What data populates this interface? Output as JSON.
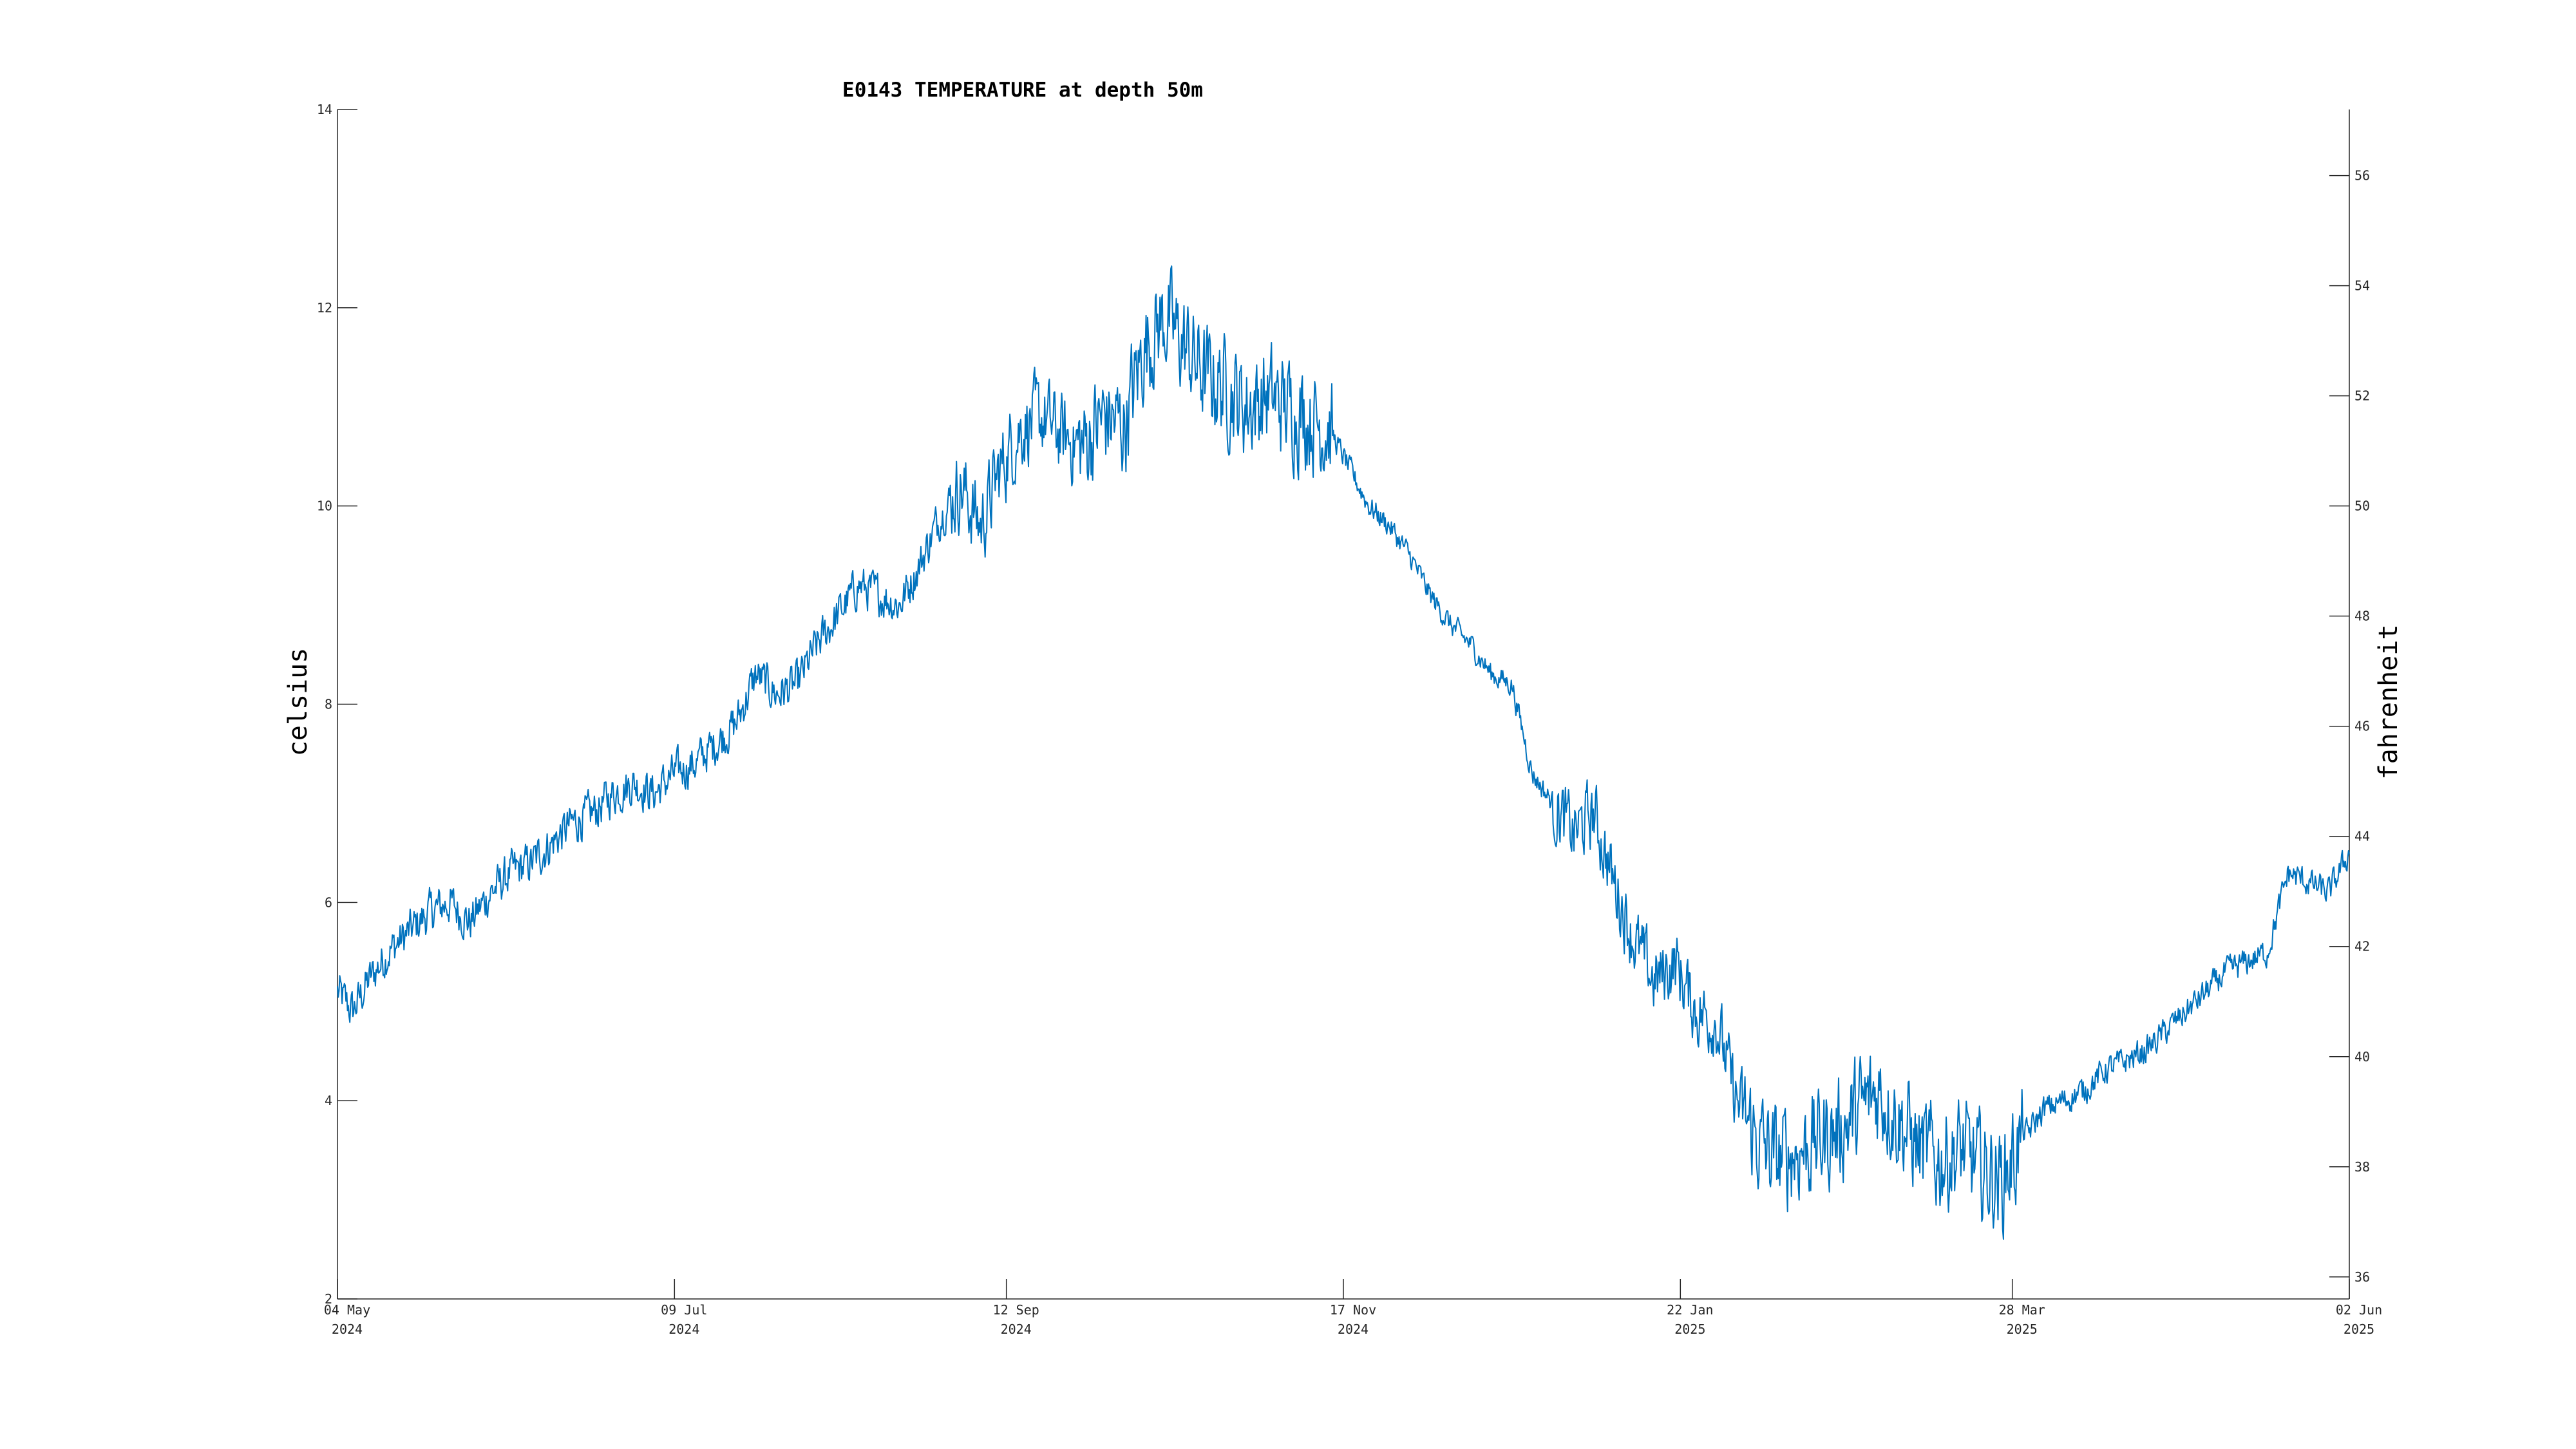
{
  "chart_data": {
    "type": "line",
    "title": "E0143 TEMPERATURE at depth 50m",
    "ylabel": "celsius",
    "ylabel_right": "fahrenheit",
    "xlabel": "",
    "xlim": [
      "2024-05-04",
      "2025-06-02"
    ],
    "ylim": [
      2,
      14
    ],
    "ylim_right": [
      35.6,
      57.2
    ],
    "grid": false,
    "legend": "none",
    "x_ticks": [
      {
        "date": "2024-05-04",
        "line1": "04 May",
        "line2": "2024"
      },
      {
        "date": "2024-07-09",
        "line1": "09 Jul",
        "line2": "2024"
      },
      {
        "date": "2024-09-12",
        "line1": "12 Sep",
        "line2": "2024"
      },
      {
        "date": "2024-11-17",
        "line1": "17 Nov",
        "line2": "2024"
      },
      {
        "date": "2025-01-22",
        "line1": "22 Jan",
        "line2": "2025"
      },
      {
        "date": "2025-03-28",
        "line1": "28 Mar",
        "line2": "2025"
      },
      {
        "date": "2025-06-02",
        "line1": "02 Jun",
        "line2": "2025"
      }
    ],
    "y_ticks": [
      2,
      4,
      6,
      8,
      10,
      12,
      14
    ],
    "y_ticks_right": [
      36,
      38,
      40,
      42,
      44,
      46,
      48,
      50,
      52,
      54,
      56
    ],
    "series": [
      {
        "color": "#0072bd",
        "x": [
          "2024-05-04",
          "2024-05-07",
          "2024-05-10",
          "2024-05-14",
          "2024-05-18",
          "2024-05-22",
          "2024-05-26",
          "2024-05-30",
          "2024-06-03",
          "2024-06-07",
          "2024-06-11",
          "2024-06-15",
          "2024-06-19",
          "2024-06-23",
          "2024-06-27",
          "2024-07-01",
          "2024-07-05",
          "2024-07-09",
          "2024-07-13",
          "2024-07-17",
          "2024-07-21",
          "2024-07-25",
          "2024-07-29",
          "2024-08-02",
          "2024-08-06",
          "2024-08-10",
          "2024-08-14",
          "2024-08-18",
          "2024-08-22",
          "2024-08-26",
          "2024-08-30",
          "2024-09-03",
          "2024-09-07",
          "2024-09-11",
          "2024-09-15",
          "2024-09-19",
          "2024-09-23",
          "2024-09-27",
          "2024-10-01",
          "2024-10-05",
          "2024-10-09",
          "2024-10-13",
          "2024-10-17",
          "2024-10-21",
          "2024-10-25",
          "2024-10-29",
          "2024-11-02",
          "2024-11-06",
          "2024-11-10",
          "2024-11-14",
          "2024-11-18",
          "2024-11-22",
          "2024-11-26",
          "2024-11-30",
          "2024-12-04",
          "2024-12-08",
          "2024-12-12",
          "2024-12-16",
          "2024-12-20",
          "2024-12-24",
          "2024-12-28",
          "2025-01-01",
          "2025-01-05",
          "2025-01-09",
          "2025-01-13",
          "2025-01-17",
          "2025-01-21",
          "2025-01-25",
          "2025-01-29",
          "2025-02-02",
          "2025-02-06",
          "2025-02-10",
          "2025-02-14",
          "2025-02-18",
          "2025-02-22",
          "2025-02-26",
          "2025-03-02",
          "2025-03-06",
          "2025-03-10",
          "2025-03-14",
          "2025-03-18",
          "2025-03-22",
          "2025-03-26",
          "2025-03-30",
          "2025-04-03",
          "2025-04-07",
          "2025-04-11",
          "2025-04-15",
          "2025-04-19",
          "2025-04-23",
          "2025-04-27",
          "2025-05-01",
          "2025-05-05",
          "2025-05-09",
          "2025-05-13",
          "2025-05-17",
          "2025-05-21",
          "2025-05-25",
          "2025-05-29",
          "2025-06-02"
        ],
        "y": [
          5.1,
          4.9,
          5.2,
          5.5,
          5.7,
          5.9,
          6.0,
          5.8,
          6.1,
          6.3,
          6.4,
          6.6,
          6.8,
          6.9,
          7.1,
          7.2,
          7.1,
          7.3,
          7.4,
          7.6,
          7.8,
          8.3,
          8.1,
          8.2,
          8.6,
          8.9,
          9.2,
          9.1,
          9.0,
          9.4,
          9.9,
          10.2,
          9.8,
          10.4,
          10.8,
          10.9,
          10.7,
          10.6,
          10.9,
          10.8,
          11.6,
          11.9,
          11.6,
          11.3,
          11.2,
          11.0,
          11.1,
          11.0,
          10.9,
          10.8,
          10.4,
          10.0,
          9.8,
          9.5,
          9.1,
          8.8,
          8.6,
          8.3,
          8.2,
          7.3,
          7.0,
          6.7,
          6.9,
          6.2,
          5.6,
          5.2,
          5.4,
          4.9,
          4.8,
          4.0,
          3.6,
          3.4,
          3.5,
          3.6,
          3.7,
          3.9,
          4.1,
          3.8,
          3.5,
          3.4,
          3.5,
          3.3,
          3.2,
          3.6,
          3.9,
          4.0,
          4.1,
          4.3,
          4.4,
          4.5,
          4.7,
          4.9,
          5.1,
          5.3,
          5.4,
          5.5,
          6.3,
          6.2,
          6.1,
          6.5
        ]
      }
    ]
  }
}
